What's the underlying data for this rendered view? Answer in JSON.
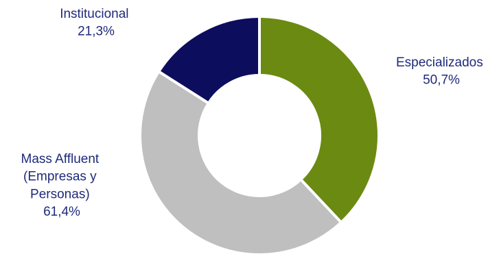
{
  "chart_data": {
    "type": "pie",
    "variant": "donut",
    "title": "",
    "slices": [
      {
        "name": "Especializados",
        "display_value": "50,7%",
        "value": 50.7,
        "color": "#6b8a12",
        "label_lines": [
          "Especializados",
          "50,7%"
        ]
      },
      {
        "name": "Mass Affluent (Empresas y Personas)",
        "display_value": "61,4%",
        "value": 61.4,
        "color": "#bfbfbf",
        "label_lines": [
          "Mass Affluent",
          "(Empresas y",
          "Personas)",
          "61,4%"
        ]
      },
      {
        "name": "Institucional",
        "display_value": "21,3%",
        "value": 21.3,
        "color": "#0d0d5e",
        "label_lines": [
          "Institucional",
          "21,3%"
        ]
      }
    ],
    "start_angle": "12 o'clock",
    "direction": "clockwise",
    "legend": "none",
    "label_color": "#1f2a7a",
    "background": "#ffffff"
  }
}
